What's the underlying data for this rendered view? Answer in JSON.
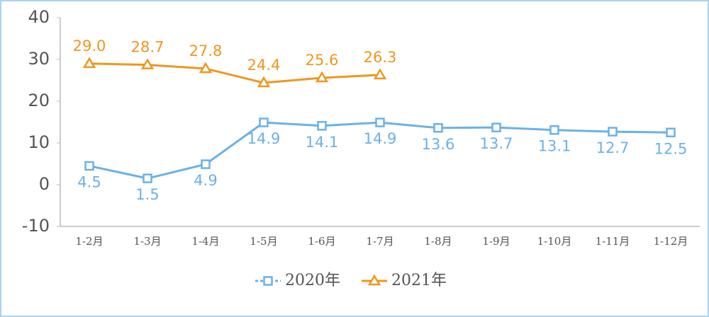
{
  "chart_data": {
    "type": "line",
    "categories": [
      "1-2月",
      "1-3月",
      "1-4月",
      "1-5月",
      "1-6月",
      "1-7月",
      "1-8月",
      "1-9月",
      "1-10月",
      "1-11月",
      "1-12月"
    ],
    "series": [
      {
        "name": "2020年",
        "color": "#6ab2e7",
        "marker": "square",
        "values": [
          4.5,
          1.5,
          4.9,
          14.9,
          14.1,
          14.9,
          13.6,
          13.7,
          13.1,
          12.7,
          12.5
        ],
        "value_labels": [
          "4.5",
          "1.5",
          "4.9",
          "14.9",
          "14.1",
          "14.9",
          "13.6",
          "13.7",
          "13.1",
          "12.7",
          "12.5"
        ]
      },
      {
        "name": "2021年",
        "color": "#f0961e",
        "marker": "triangle",
        "values": [
          29.0,
          28.7,
          27.8,
          24.4,
          25.6,
          26.3,
          null,
          null,
          null,
          null,
          null
        ],
        "value_labels": [
          "29.0",
          "28.7",
          "27.8",
          "24.4",
          "25.6",
          "26.3",
          null,
          null,
          null,
          null,
          null
        ]
      }
    ],
    "ylim": [
      -10,
      40
    ],
    "yticks": [
      -10,
      0,
      10,
      20,
      30,
      40
    ],
    "grid": false,
    "legend": "bottom"
  }
}
